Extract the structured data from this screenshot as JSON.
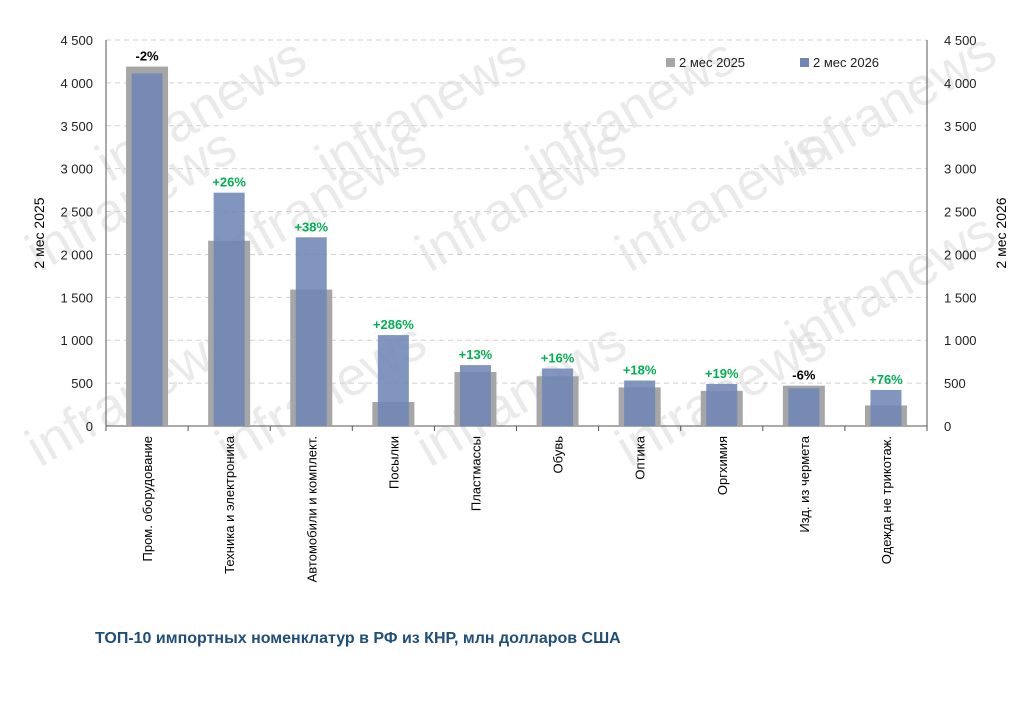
{
  "caption": "ТОП-10 импортных номенклатур в РФ из КНР, млн долларов США",
  "watermark": "infranews",
  "chart_data": {
    "type": "bar",
    "categories": [
      "Пром. оборудование",
      "Техника и электроника",
      "Автомобили и комплект.",
      "Посылки",
      "Пластмассы",
      "Обувь",
      "Оптика",
      "Оргхимия",
      "Изд. из чермета",
      "Одежда не трикотаж."
    ],
    "series": [
      {
        "name": "2 мес 2025",
        "color": "#a6a6a6",
        "values": [
          4190,
          2160,
          1590,
          280,
          630,
          580,
          450,
          410,
          470,
          240
        ]
      },
      {
        "name": "2 мес 2026",
        "color": "#6f86b6",
        "values": [
          4110,
          2720,
          2200,
          1060,
          710,
          670,
          530,
          490,
          440,
          420
        ]
      }
    ],
    "annotations": [
      "-2%",
      "+26%",
      "+38%",
      "+286%",
      "+13%",
      "+16%",
      "+18%",
      "+19%",
      "-6%",
      "+76%"
    ],
    "annotation_colors": {
      "positive": "#00b050",
      "negative": "#000000"
    },
    "ylabel_left": "2 мес 2025",
    "ylabel_right": "2 мес 2026",
    "ylim": [
      0,
      4500
    ],
    "yticks": [
      0,
      500,
      1000,
      1500,
      2000,
      2500,
      3000,
      3500,
      4000,
      4500
    ],
    "ytick_labels": [
      "0",
      "500",
      "1 000",
      "1 500",
      "2 000",
      "2 500",
      "3 000",
      "3 500",
      "4 000",
      "4 500"
    ],
    "grid": true,
    "legend_position": "top-right"
  }
}
